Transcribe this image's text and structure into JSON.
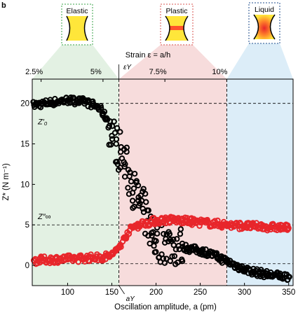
{
  "panel_label": "b",
  "insets": [
    {
      "label": "Elastic",
      "border_color": "#3aa34a"
    },
    {
      "label": "Plastic",
      "border_color": "#d9534f"
    },
    {
      "label": "Liquid",
      "border_color": "#1f4e8c"
    }
  ],
  "colors": {
    "elastic_zone": "#e3f1e3",
    "plastic_zone": "#f7dcdc",
    "liquid_zone": "#dcedf8",
    "series_storage": "#000000",
    "series_loss": "#e8262b",
    "inset_fill": "#ffe63a"
  },
  "chart_data": {
    "type": "scatter",
    "xlabel": "Oscillation amplitude, a (pm)",
    "ylabel": "Z* (N m⁻¹)",
    "top_axis_label": "Strain ε = a/h",
    "top_ticks": [
      "2.5%",
      "5%",
      "7.5%",
      "10%"
    ],
    "top_tick_x": [
      70,
      140,
      210,
      280
    ],
    "xlim": [
      60,
      355
    ],
    "ylim": [
      -2.5,
      23
    ],
    "x_ticks": [
      100,
      150,
      200,
      250,
      300,
      350
    ],
    "y_ticks": [
      0,
      5,
      10,
      15,
      20
    ],
    "yield_x": 158,
    "liquid_x": 280,
    "yield_label_top": "εY",
    "yield_label_bottom": "aY",
    "reference_lines": [
      {
        "y": 20,
        "label": "Z′₀"
      },
      {
        "y": 5,
        "label": "Z″∞"
      },
      {
        "y": 0.2,
        "label": ""
      }
    ],
    "series": [
      {
        "color": "#000000",
        "x": [
          62,
          80,
          100,
          120,
          135,
          145,
          150,
          155,
          160,
          165,
          170,
          175,
          180,
          185,
          190,
          195,
          200,
          210,
          220,
          230,
          240,
          250,
          260,
          270,
          280,
          290,
          300,
          310,
          320,
          330,
          340,
          350
        ],
        "y": [
          19.8,
          20.1,
          20.4,
          20.2,
          19.5,
          18.0,
          16.0,
          15.0,
          14.0,
          12.5,
          11.0,
          9.5,
          8.0,
          7.0,
          5.5,
          4.0,
          3.0,
          2.8,
          2.5,
          2.3,
          2.0,
          1.8,
          1.5,
          1.0,
          0.5,
          0.0,
          -0.5,
          -0.8,
          -1.0,
          -1.2,
          -1.3,
          -1.4
        ]
      },
      {
        "color": "#e8262b",
        "x": [
          62,
          80,
          100,
          120,
          140,
          150,
          155,
          160,
          165,
          170,
          175,
          180,
          190,
          200,
          210,
          220,
          230,
          240,
          250,
          260,
          270,
          280,
          290,
          300,
          310,
          320,
          330,
          340,
          350
        ],
        "y": [
          0.6,
          0.7,
          0.8,
          0.9,
          1.0,
          1.3,
          1.8,
          2.5,
          3.5,
          4.3,
          4.8,
          5.0,
          5.3,
          5.5,
          5.6,
          5.6,
          5.5,
          5.4,
          5.3,
          5.2,
          5.1,
          5.0,
          4.9,
          4.9,
          4.8,
          4.8,
          4.7,
          4.7,
          4.6
        ]
      }
    ]
  }
}
